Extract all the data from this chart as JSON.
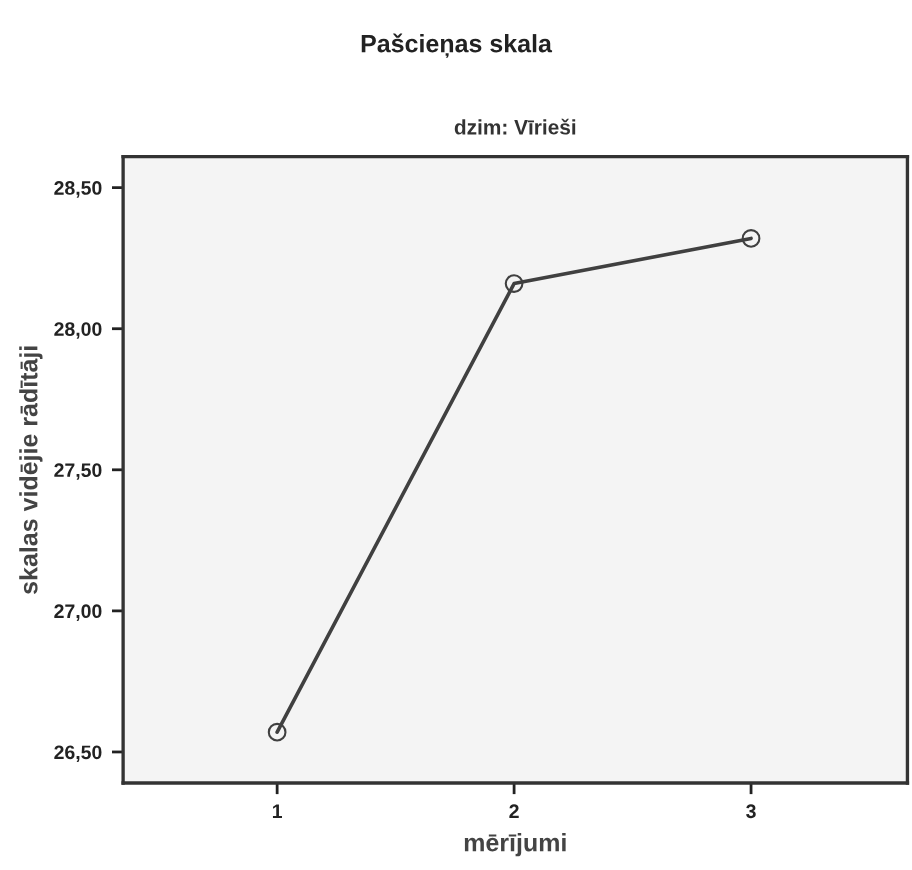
{
  "chart_data": {
    "type": "line",
    "title": "Pašcieņas skala",
    "subtitle": "dzim: Vīrieši",
    "xlabel": "mērījumi",
    "ylabel": "skalas vidējie rādītāji",
    "x": [
      1,
      2,
      3
    ],
    "series": [
      {
        "color": "#404040",
        "values": [
          26.57,
          28.16,
          28.32
        ]
      }
    ],
    "marker": "circle",
    "grid": false,
    "xlim": [
      0.35,
      3.66
    ],
    "xticks": [
      1,
      2,
      3
    ],
    "ylim": [
      26.39,
      28.61
    ],
    "yticks": [
      {
        "value": 26.5,
        "label": "26,50"
      },
      {
        "value": 27.0,
        "label": "27,00"
      },
      {
        "value": 27.5,
        "label": "27,50"
      },
      {
        "value": 28.0,
        "label": "28,00"
      },
      {
        "value": 28.5,
        "label": "28,50"
      }
    ]
  }
}
